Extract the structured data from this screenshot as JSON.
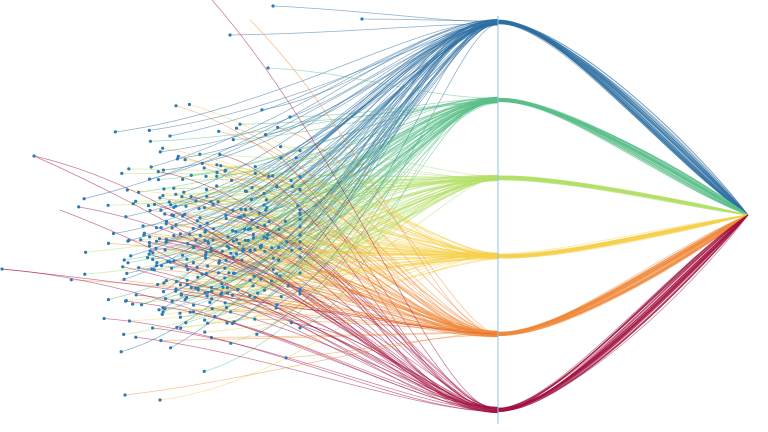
{
  "palette": {
    "background": "#ffffff",
    "axis": "#8cc4e0",
    "dot": "#2b7cb5",
    "groups": [
      "#2e6fa3",
      "#5bbf8a",
      "#b4e06a",
      "#f6d24e",
      "#f0883a",
      "#a3123f"
    ]
  },
  "diagram": {
    "type": "bundled-tree-links",
    "group_count": 6,
    "leaf_count": 360,
    "stray_link_count": 6
  }
}
